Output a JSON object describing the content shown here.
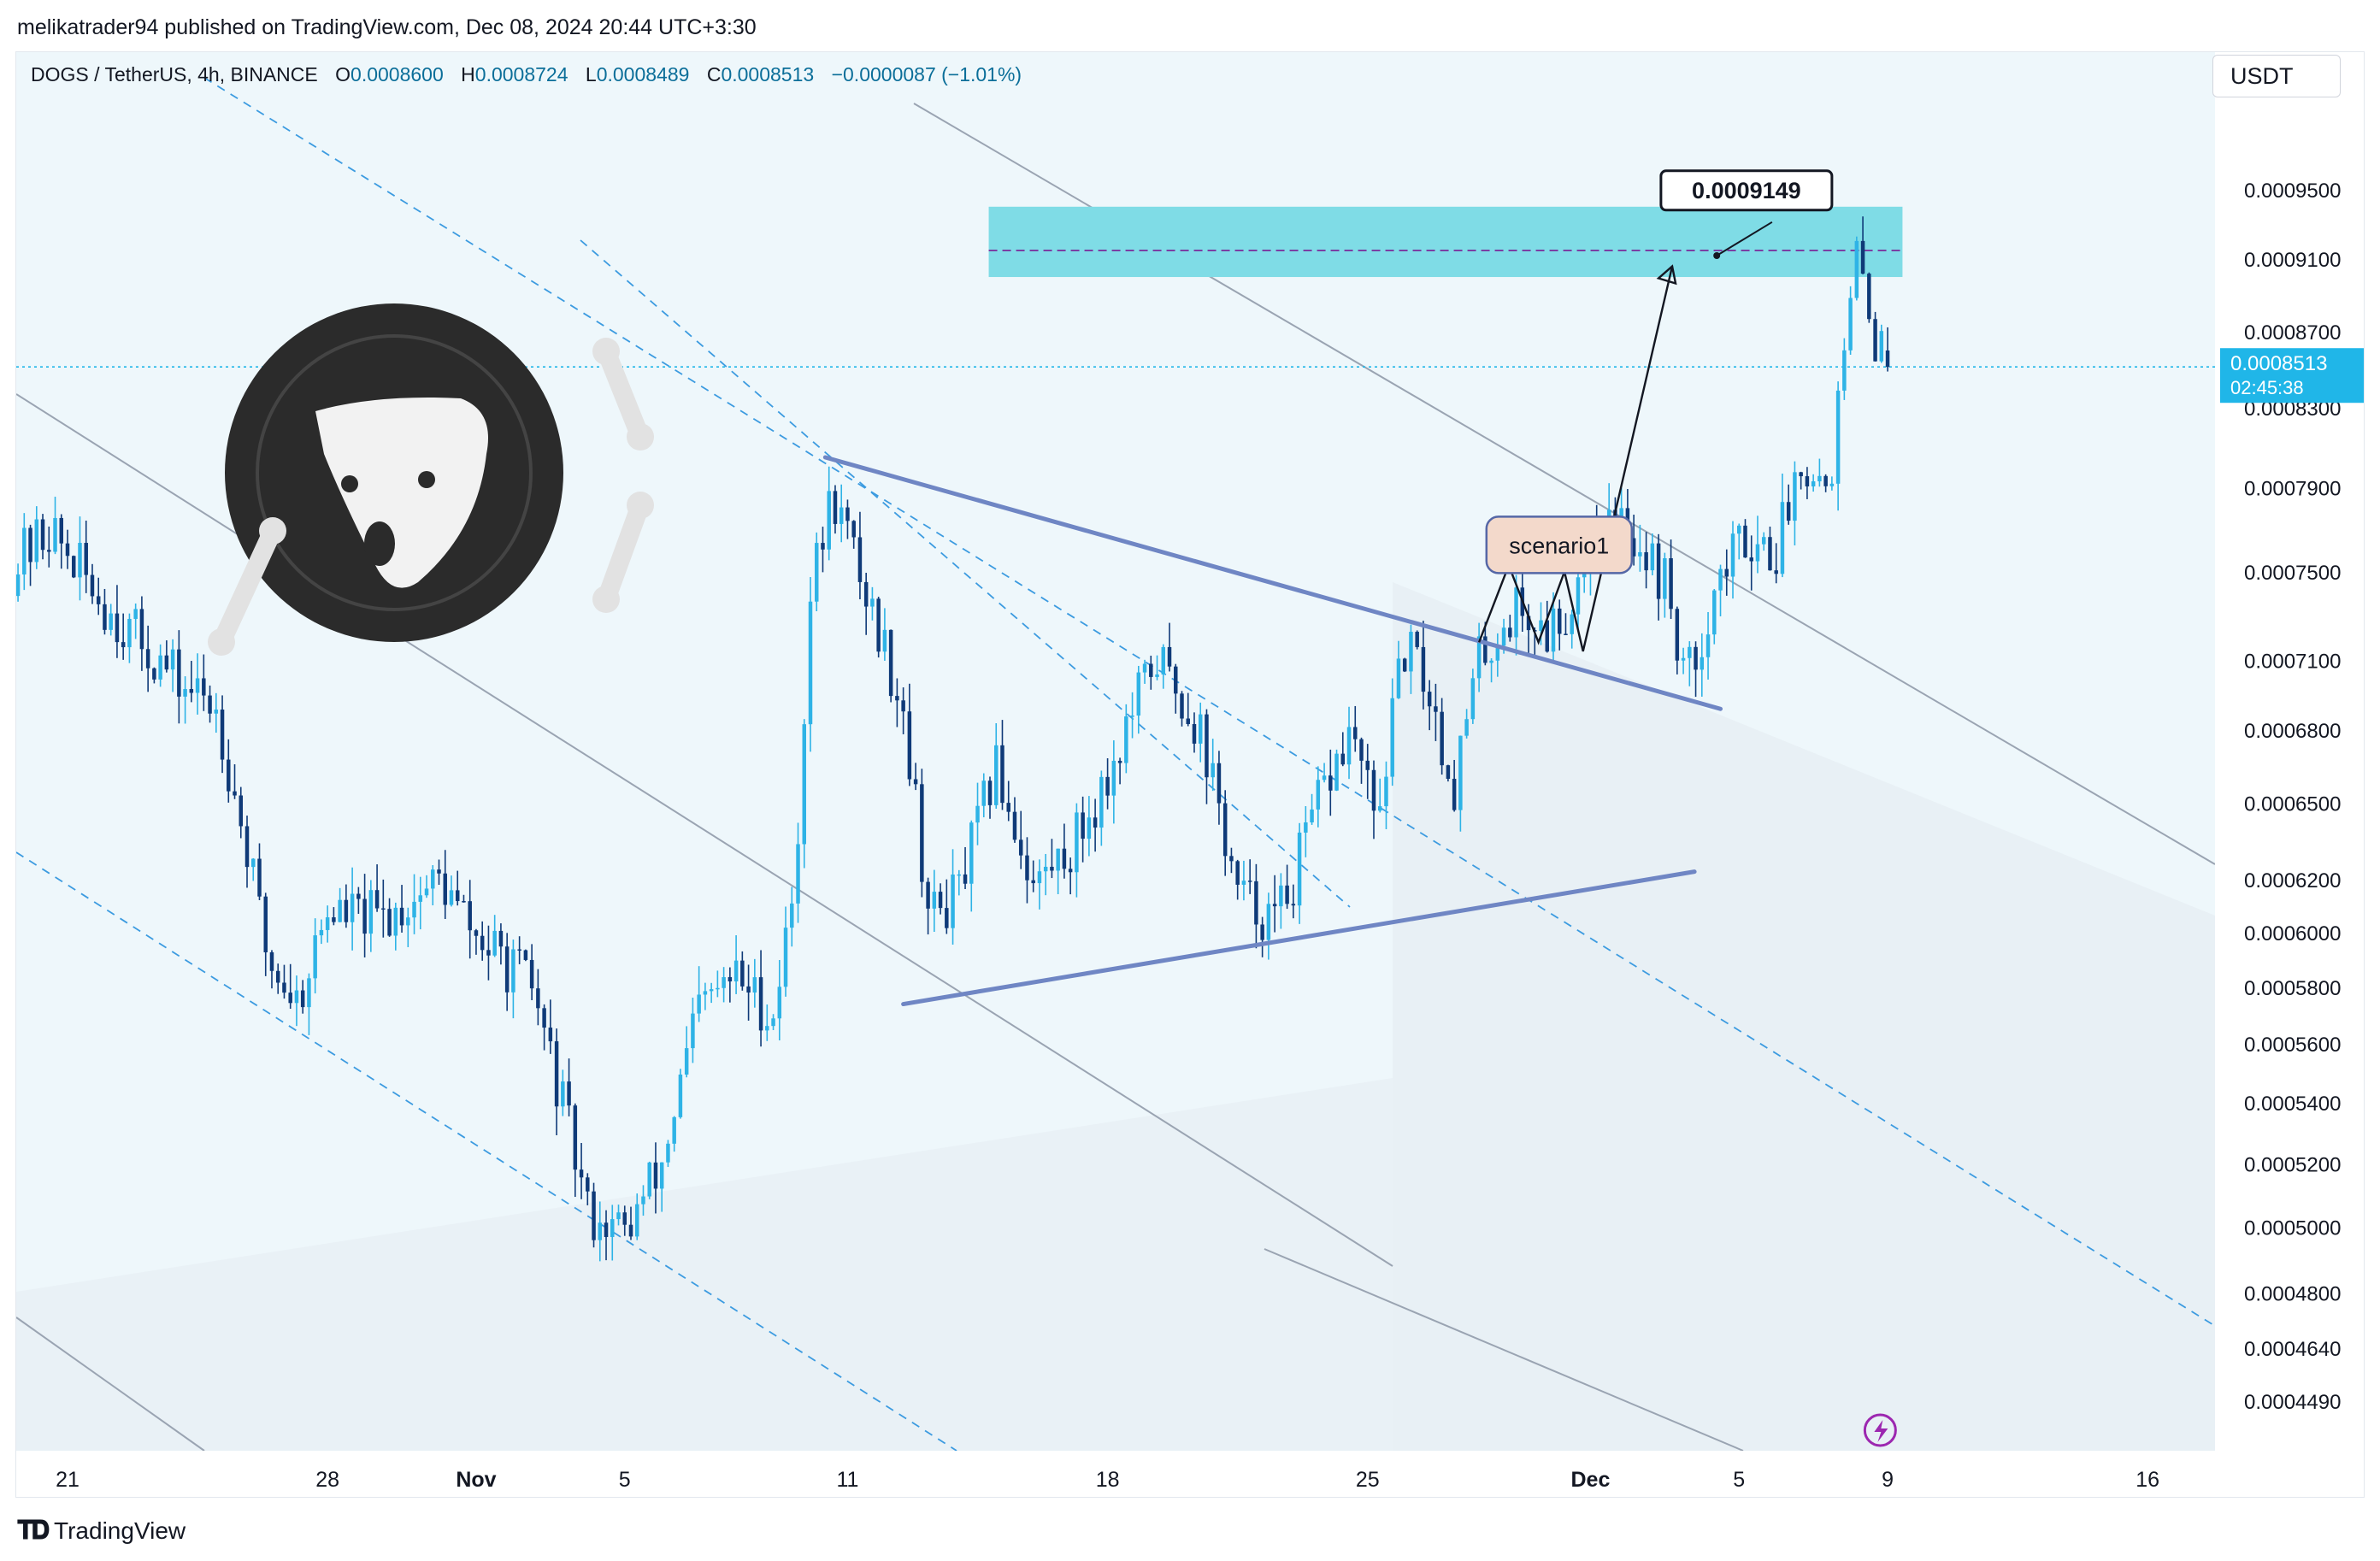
{
  "header": {
    "published": "melikatrader94 published on TradingView.com, Dec 08, 2024 20:44 UTC+3:30"
  },
  "legend": {
    "symbol": "DOGS / TetherUS, 4h, BINANCE",
    "open_label": "O",
    "open": "0.0008600",
    "high_label": "H",
    "high": "0.0008724",
    "low_label": "L",
    "low": "0.0008489",
    "close_label": "C",
    "close": "0.0008513",
    "change": "−0.0000087 (−1.01%)"
  },
  "currency_button": {
    "label": "USDT"
  },
  "footer": {
    "brand": "TradingView",
    "logo_icon": "tradingview-logo-icon"
  },
  "colors": {
    "bull": "#2eb3e6",
    "bear": "#0f3a78",
    "target_zone": "#7fdce6",
    "pattern_lines": "#6f86c4",
    "price_tag": "#20b6e8",
    "grid_line": "#9aa4b2",
    "channel_dash": "#3c9be0"
  },
  "chart_data": {
    "type": "candlestick",
    "timeframe": "4h",
    "last_price": "0.0008513",
    "countdown": "02:45:38",
    "target_label": "0.0009149",
    "target_price": 0.0009149,
    "target_zone": [
      0.0009,
      0.00094
    ],
    "scenario_label": "scenario1",
    "ylim": [
      0.00042,
      0.00108
    ],
    "y_ticks": [
      "0.0009500",
      "0.0009100",
      "0.0008700",
      "0.0008300",
      "0.0007900",
      "0.0007500",
      "0.0007100",
      "0.0006800",
      "0.0006500",
      "0.0006200",
      "0.0006000",
      "0.0005800",
      "0.0005600",
      "0.0005400",
      "0.0005200",
      "0.0005000",
      "0.0004800",
      "0.0004640",
      "0.0004490"
    ],
    "x_ticks": [
      {
        "label": "21",
        "day": -10,
        "bold": false
      },
      {
        "label": "28",
        "day": -3,
        "bold": false
      },
      {
        "label": "Nov",
        "day": 1,
        "bold": true
      },
      {
        "label": "5",
        "day": 5,
        "bold": false
      },
      {
        "label": "11",
        "day": 11,
        "bold": false
      },
      {
        "label": "18",
        "day": 18,
        "bold": false
      },
      {
        "label": "25",
        "day": 25,
        "bold": false
      },
      {
        "label": "Dec",
        "day": 31,
        "bold": true
      },
      {
        "label": "5",
        "day": 35,
        "bold": false
      },
      {
        "label": "9",
        "day": 39,
        "bold": false
      },
      {
        "label": "16",
        "day": 46,
        "bold": false
      }
    ],
    "anchors": [
      {
        "day": -11.5,
        "price": 0.000752
      },
      {
        "day": -10.5,
        "price": 0.00077
      },
      {
        "day": -9.0,
        "price": 0.000735
      },
      {
        "day": -7.0,
        "price": 0.0007
      },
      {
        "day": -6.0,
        "price": 0.00069
      },
      {
        "day": -4.6,
        "price": 0.00059
      },
      {
        "day": -3.8,
        "price": 0.000575
      },
      {
        "day": -3.0,
        "price": 0.000608
      },
      {
        "day": -1.5,
        "price": 0.000605
      },
      {
        "day": 0.0,
        "price": 0.00062
      },
      {
        "day": 1.0,
        "price": 0.000598
      },
      {
        "day": 2.5,
        "price": 0.00058
      },
      {
        "day": 3.3,
        "price": 0.00054
      },
      {
        "day": 4.0,
        "price": 0.000505
      },
      {
        "day": 5.0,
        "price": 0.000498
      },
      {
        "day": 6.0,
        "price": 0.00052
      },
      {
        "day": 7.0,
        "price": 0.000572
      },
      {
        "day": 8.0,
        "price": 0.000584
      },
      {
        "day": 9.0,
        "price": 0.00057
      },
      {
        "day": 9.6,
        "price": 0.00062
      },
      {
        "day": 10.0,
        "price": 0.00074
      },
      {
        "day": 10.6,
        "price": 0.000788
      },
      {
        "day": 11.5,
        "price": 0.00074
      },
      {
        "day": 12.5,
        "price": 0.00069
      },
      {
        "day": 13.2,
        "price": 0.000605
      },
      {
        "day": 14.0,
        "price": 0.000615
      },
      {
        "day": 15.0,
        "price": 0.000665
      },
      {
        "day": 16.0,
        "price": 0.000618
      },
      {
        "day": 17.0,
        "price": 0.000632
      },
      {
        "day": 18.0,
        "price": 0.00066
      },
      {
        "day": 19.3,
        "price": 0.000712
      },
      {
        "day": 20.5,
        "price": 0.00068
      },
      {
        "day": 21.5,
        "price": 0.000614
      },
      {
        "day": 22.5,
        "price": 0.000604
      },
      {
        "day": 23.0,
        "price": 0.00062
      },
      {
        "day": 23.8,
        "price": 0.000655
      },
      {
        "day": 24.6,
        "price": 0.00068
      },
      {
        "day": 25.2,
        "price": 0.00064
      },
      {
        "day": 26.0,
        "price": 0.000715
      },
      {
        "day": 26.6,
        "price": 0.0007
      },
      {
        "day": 27.3,
        "price": 0.000655
      },
      {
        "day": 28.0,
        "price": 0.00071
      },
      {
        "day": 29.0,
        "price": 0.000734
      },
      {
        "day": 29.8,
        "price": 0.000722
      },
      {
        "day": 30.5,
        "price": 0.000736
      },
      {
        "day": 31.0,
        "price": 0.00077
      },
      {
        "day": 32.0,
        "price": 0.000772
      },
      {
        "day": 33.0,
        "price": 0.000745
      },
      {
        "day": 33.6,
        "price": 0.0007
      },
      {
        "day": 34.4,
        "price": 0.000745
      },
      {
        "day": 35.2,
        "price": 0.000768
      },
      {
        "day": 36.0,
        "price": 0.00076
      },
      {
        "day": 36.7,
        "price": 0.000808
      },
      {
        "day": 37.4,
        "price": 0.00079
      },
      {
        "day": 37.9,
        "price": 0.000865
      },
      {
        "day": 38.2,
        "price": 0.000915
      },
      {
        "day": 38.6,
        "price": 0.00087
      },
      {
        "day": 39.0,
        "price": 0.000851
      }
    ]
  }
}
